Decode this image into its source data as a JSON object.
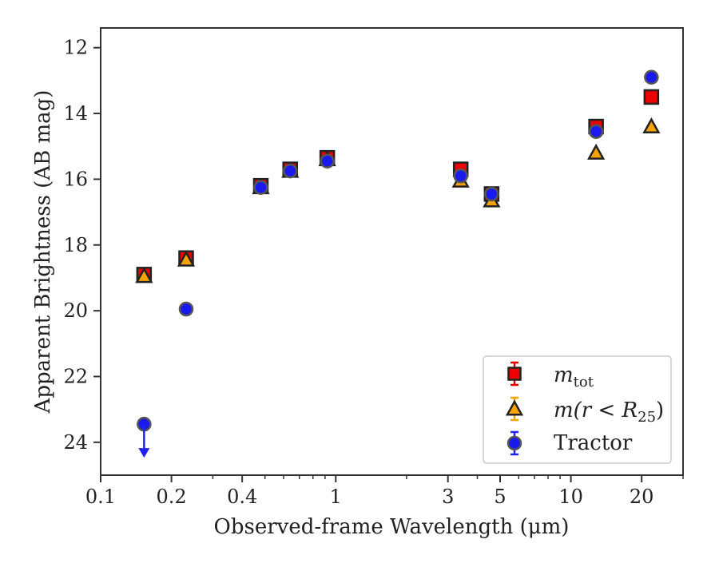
{
  "chart_data": {
    "type": "scatter",
    "xlabel": "Observed-frame Wavelength (μm)",
    "ylabel": "Apparent Brightness (AB mag)",
    "x_scale": "log",
    "xlim": [
      0.1,
      30
    ],
    "ylim": [
      25,
      11.4
    ],
    "y_inverted": true,
    "x_ticks": [
      {
        "value": 0.1,
        "label": "0.1"
      },
      {
        "value": 0.2,
        "label": "0.2"
      },
      {
        "value": 0.4,
        "label": "0.4"
      },
      {
        "value": 1,
        "label": "1"
      },
      {
        "value": 3,
        "label": "3"
      },
      {
        "value": 5,
        "label": "5"
      },
      {
        "value": 10,
        "label": "10"
      },
      {
        "value": 20,
        "label": "20"
      }
    ],
    "x_minor_ticks": [
      0.3,
      0.5,
      0.6,
      0.7,
      0.8,
      0.9,
      2,
      4,
      6,
      7,
      8,
      9,
      30
    ],
    "y_ticks": [
      {
        "value": 12,
        "label": "12"
      },
      {
        "value": 14,
        "label": "14"
      },
      {
        "value": 16,
        "label": "16"
      },
      {
        "value": 18,
        "label": "18"
      },
      {
        "value": 20,
        "label": "20"
      },
      {
        "value": 22,
        "label": "22"
      },
      {
        "value": 24,
        "label": "24"
      }
    ],
    "grid": false,
    "legend_position": "lower-right",
    "series": [
      {
        "name": "m_tot",
        "legend_main": "m",
        "legend_sub": "tot",
        "marker": "square",
        "color": "#ee0000",
        "errorbar_color": "#dd0000",
        "points": [
          {
            "x": 0.153,
            "y": 18.9
          },
          {
            "x": 0.231,
            "y": 18.4
          },
          {
            "x": 0.48,
            "y": 16.2
          },
          {
            "x": 0.64,
            "y": 15.7
          },
          {
            "x": 0.92,
            "y": 15.35
          },
          {
            "x": 3.4,
            "y": 15.7
          },
          {
            "x": 4.6,
            "y": 16.45
          },
          {
            "x": 12.8,
            "y": 14.4
          },
          {
            "x": 22.0,
            "y": 13.5
          }
        ]
      },
      {
        "name": "m(r < R25)",
        "legend_main": "m(r < R",
        "legend_sub": "25",
        "legend_tail": ")",
        "marker": "triangle",
        "color": "#f5a300",
        "errorbar_color": "#f5a300",
        "points": [
          {
            "x": 0.153,
            "y": 18.95
          },
          {
            "x": 0.231,
            "y": 18.45
          },
          {
            "x": 0.48,
            "y": 16.25
          },
          {
            "x": 0.64,
            "y": 15.75
          },
          {
            "x": 0.92,
            "y": 15.4
          },
          {
            "x": 3.4,
            "y": 16.05
          },
          {
            "x": 4.6,
            "y": 16.65
          },
          {
            "x": 12.8,
            "y": 15.2
          },
          {
            "x": 22.0,
            "y": 14.4
          }
        ]
      },
      {
        "name": "Tractor",
        "legend_main": "Tractor",
        "marker": "circle",
        "color": "#1a1aee",
        "errorbar_color": "#2222ee",
        "points": [
          {
            "x": 0.153,
            "y": 23.45,
            "upper_limit": true
          },
          {
            "x": 0.231,
            "y": 19.95
          },
          {
            "x": 0.48,
            "y": 16.25
          },
          {
            "x": 0.64,
            "y": 15.75
          },
          {
            "x": 0.92,
            "y": 15.45
          },
          {
            "x": 3.4,
            "y": 15.9
          },
          {
            "x": 4.6,
            "y": 16.45
          },
          {
            "x": 12.8,
            "y": 14.55
          },
          {
            "x": 22.0,
            "y": 12.9
          }
        ]
      }
    ]
  }
}
